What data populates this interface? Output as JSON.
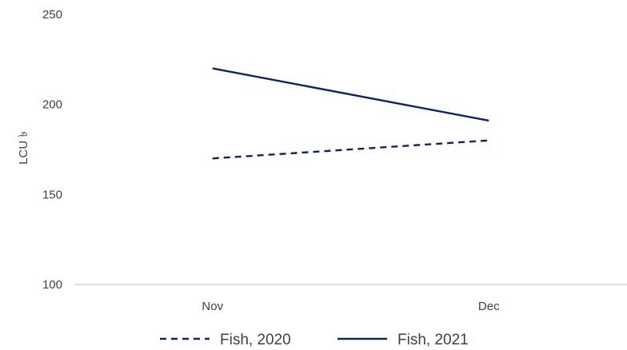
{
  "chart_data": {
    "type": "line",
    "categories": [
      "Nov",
      "Dec"
    ],
    "series": [
      {
        "name": "Fish, 2020",
        "values": [
          170,
          180
        ],
        "color": "#0c2461",
        "style": "dashed"
      },
      {
        "name": "Fish, 2021",
        "values": [
          220,
          191
        ],
        "color": "#0c2461",
        "style": "solid"
      }
    ],
    "ylabel": "LCU ৳",
    "ylim": [
      100,
      250
    ],
    "yticks": [
      100,
      150,
      200,
      250
    ],
    "grid": false,
    "legend": "bottom"
  }
}
